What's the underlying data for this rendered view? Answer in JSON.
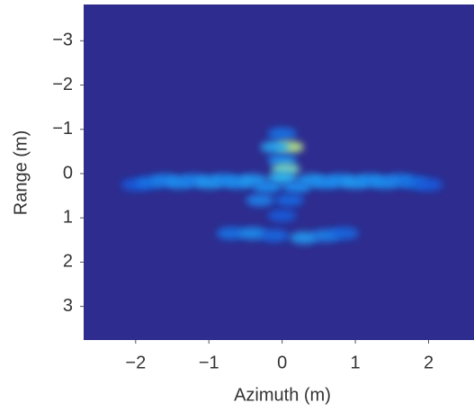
{
  "chart_data": {
    "type": "heatmap",
    "x_label": "Azimuth (m)",
    "y_label": "Range (m)",
    "xlim": [
      -2.71,
      2.62
    ],
    "ylim": [
      -3.82,
      3.76
    ],
    "y_inverted": true,
    "xticks": [
      {
        "value": -2,
        "label": "−2"
      },
      {
        "value": -1,
        "label": "−1"
      },
      0,
      1,
      2
    ],
    "yticks": [
      {
        "value": -3,
        "label": "−3"
      },
      {
        "value": -2,
        "label": "−2"
      },
      {
        "value": -1,
        "label": "−1"
      },
      0,
      1,
      2,
      3
    ],
    "background": "#2e2c8e",
    "colormap": [
      "#2e2c8e",
      "#1450d8",
      "#1c8ef0",
      "#38c8f4",
      "#d8f070"
    ],
    "x": [
      -2.0,
      -1.8,
      -1.6,
      -1.4,
      -1.2,
      -1.0,
      -0.8,
      -0.6,
      -0.4,
      0.4,
      0.6,
      0.8,
      1.0,
      1.2,
      1.4,
      1.6,
      1.8,
      2.0,
      0.0,
      0.1,
      -0.1,
      0.0,
      0.05,
      0.0,
      -0.2,
      0.2,
      -0.3,
      0.1,
      0.0,
      -0.7,
      -0.4,
      -0.1,
      0.3,
      0.6,
      0.85
    ],
    "y": [
      0.25,
      0.2,
      0.15,
      0.2,
      0.15,
      0.2,
      0.15,
      0.2,
      0.15,
      0.15,
      0.2,
      0.15,
      0.2,
      0.15,
      0.2,
      0.15,
      0.2,
      0.25,
      -0.9,
      -0.6,
      -0.6,
      -0.3,
      -0.1,
      0.1,
      0.3,
      0.3,
      0.6,
      0.6,
      0.95,
      1.35,
      1.35,
      1.4,
      1.45,
      1.4,
      1.35
    ],
    "values": [
      0.3,
      0.4,
      0.45,
      0.5,
      0.45,
      0.55,
      0.5,
      0.5,
      0.55,
      0.55,
      0.5,
      0.5,
      0.55,
      0.5,
      0.5,
      0.45,
      0.4,
      0.3,
      0.4,
      0.95,
      0.6,
      0.5,
      0.85,
      0.7,
      0.5,
      0.5,
      0.45,
      0.35,
      0.3,
      0.4,
      0.5,
      0.35,
      0.55,
      0.45,
      0.35
    ]
  }
}
